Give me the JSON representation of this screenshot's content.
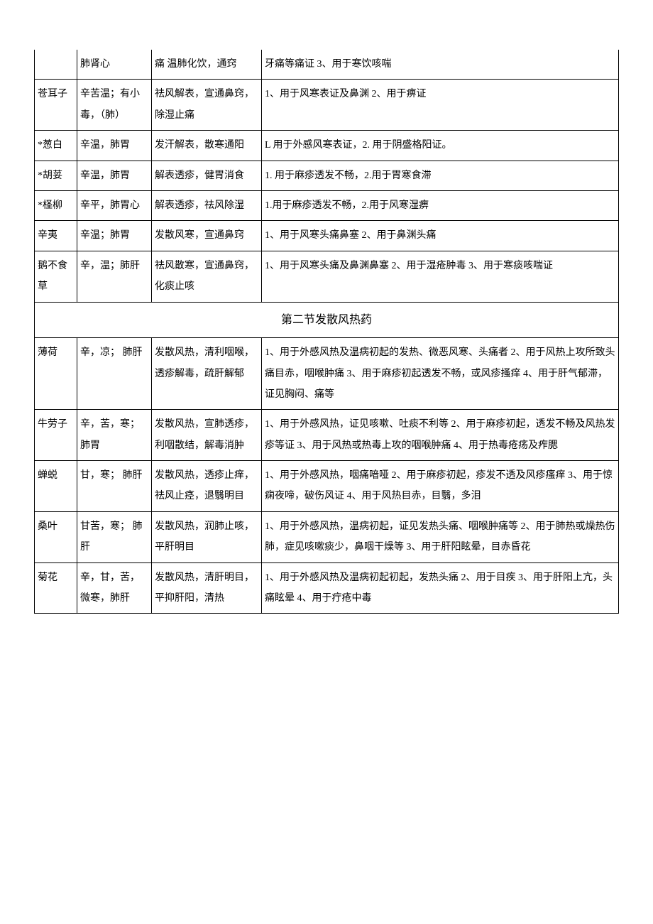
{
  "rows": [
    {
      "name": "",
      "prop": "肺肾心",
      "func": "痛\n温肺化饮，通窍",
      "use": "牙痛等痛证 3、用于寒饮咳喘"
    },
    {
      "name": "苍耳子",
      "prop": "辛苦温；有小毒，（肺）",
      "func": "祛风解表，宣通鼻窍，\n除湿止痛",
      "use": "1、用于风寒表证及鼻渊 2、用于痹证"
    },
    {
      "name": "*葱白",
      "prop": "辛温，肺胃",
      "func": "发汗解表，散寒通阳",
      "use": "L 用于外感风寒表证，2. 用于阴盛格阳证。"
    },
    {
      "name": "*胡荽",
      "prop": "辛温，肺胃",
      "func": "解表透疹，健胃消食",
      "use": "1. 用于麻疹透发不畅，2.用于胃寒食滞"
    },
    {
      "name": "*柽柳",
      "prop": "辛平，肺胃心",
      "func": "解表透疹，祛风除湿",
      "use": "1.用于麻疹透发不畅，2.用于风寒湿痹"
    },
    {
      "name": "辛夷",
      "prop": "辛温；肺胃",
      "func": "发散风寒，宣通鼻窍",
      "use": "1、用于风寒头痛鼻塞 2、用于鼻渊头痛"
    },
    {
      "name": "鹅不食草",
      "prop": "辛，温；肺肝",
      "func": "祛风散寒，宣通鼻窍，\n化痰止咳",
      "use": "1、用于风寒头痛及鼻渊鼻塞 2、用于湿疮肿毒 3、用于寒痰咳喘证"
    }
  ],
  "section_title": "第二节发散风热药",
  "rows2": [
    {
      "name": "薄荷",
      "prop": "辛，凉；\n肺肝",
      "func": "发散风热，清利咽喉，透疹解毒，疏肝解郁",
      "use": "1、用于外感风热及温病初起的发热、微恶风寒、头痛者 2、用于风热上攻所致头痛目赤，咽喉肿痛 3、用于麻疹初起透发不畅，或风疹搔痒 4、用于肝气郁滞，证见胸闷、痛等"
    },
    {
      "name": "牛劳子",
      "prop": "辛，苦，寒；\n肺胃",
      "func": "发散风热，宣肺透疹，利咽散结，解毒消肿",
      "use": "1、用于外感风热，证见咳嗽、吐痰不利等 2、用于麻疹初起，透发不畅及风热发疹等证 3、用于风热或热毒上攻的咽喉肿痛 4、用于热毒疮疡及痄腮"
    },
    {
      "name": "蝉蜕",
      "prop": "甘，寒；\n肺肝",
      "func": "发散风热，透疹止痒，祛风止痉，退翳明目",
      "use": "1、用于外感风热，咽痛喑哑 2、用于麻疹初起，疹发不透及风疹瘙痒 3、用于惊痫夜啼，破伤风证 4、用于风热目赤，目翳，多泪"
    },
    {
      "name": "桑叶",
      "prop": "甘苦，寒；\n肺肝",
      "func": "发散风热，润肺止咳，平肝明目",
      "use": "1、用于外感风热，温病初起，证见发热头痛、咽喉肿痛等 2、用于肺热或燥热伤肺，症见咳嗽痰少，鼻咽干燥等 3、用于肝阳眩晕，目赤昏花"
    },
    {
      "name": "菊花",
      "prop": "辛，甘，苦，微寒，肺肝",
      "func": "发散风热，清肝明目，平抑肝阳，清热",
      "use": "1、用于外感风热及温病初起初起，发热头痛 2、用于目疾 3、用于肝阳上亢，头痛眩晕 4、用于疔疮中毒"
    }
  ]
}
